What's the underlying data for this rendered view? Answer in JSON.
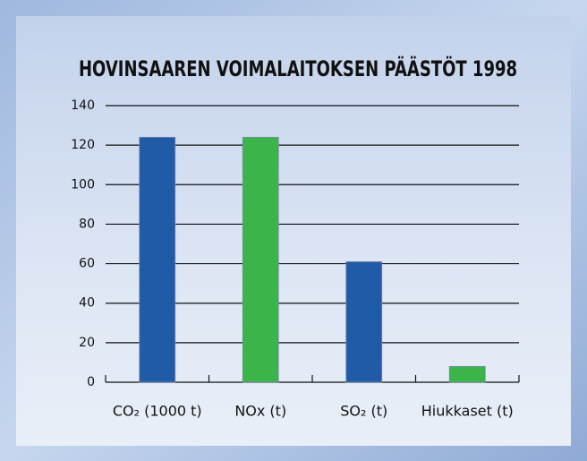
{
  "chart_data": {
    "type": "bar",
    "title": "HOVINSAAREN VOIMALAITOKSEN PÄÄSTÖT 1998",
    "categories": [
      "CO₂ (1000 t)",
      "NOx (t)",
      "SO₂ (t)",
      "Hiukkaset (t)"
    ],
    "values": [
      124,
      124,
      61,
      8
    ],
    "colors": [
      "#1f5ba6",
      "#3bb54a",
      "#1f5ba6",
      "#3bb54a"
    ],
    "ylim": [
      0,
      140
    ],
    "yticks": [
      0,
      20,
      40,
      60,
      80,
      100,
      120,
      140
    ],
    "grid": true
  }
}
